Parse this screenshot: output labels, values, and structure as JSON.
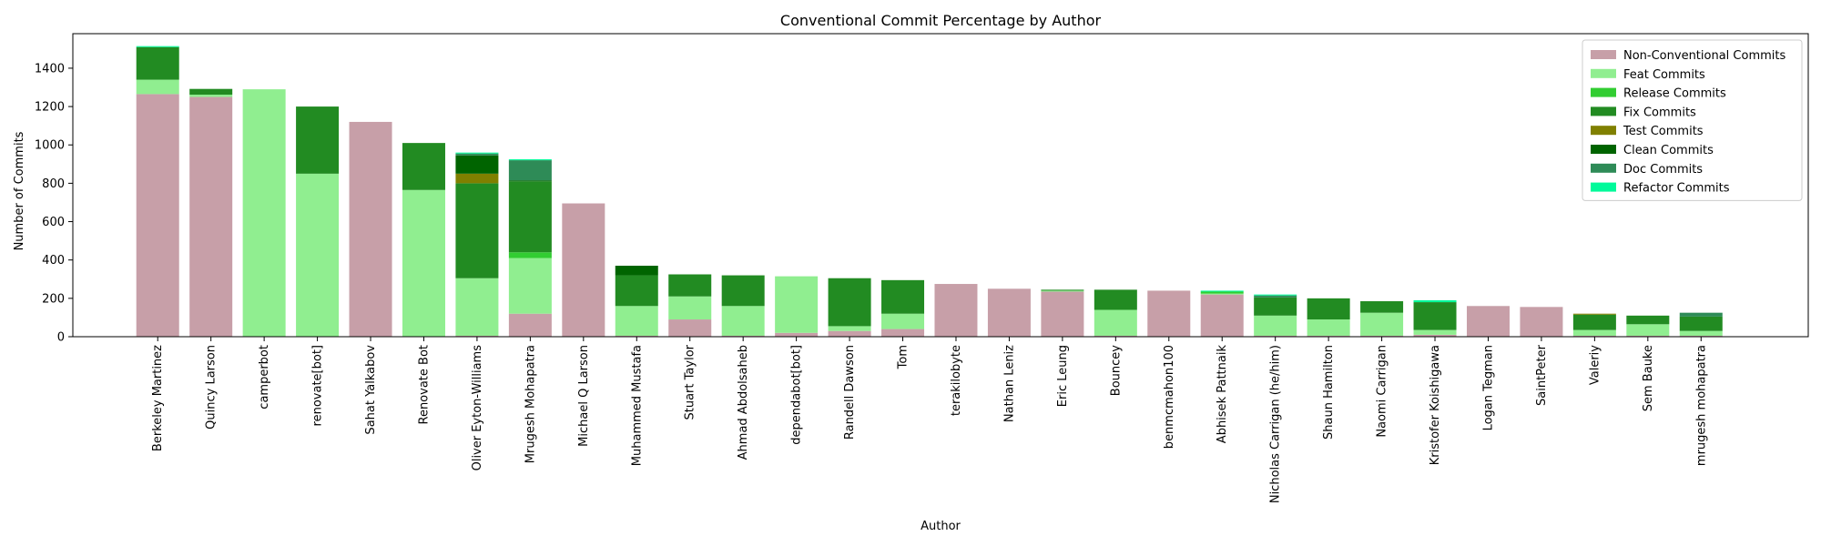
{
  "chart_data": {
    "type": "bar",
    "stacked": true,
    "title": "Conventional Commit Percentage by Author",
    "xlabel": "Author",
    "ylabel": "Number of Commits",
    "ylim": [
      0,
      1580
    ],
    "yticks": [
      0,
      200,
      400,
      600,
      800,
      1000,
      1200,
      1400
    ],
    "grid": false,
    "legend_position": "top-right",
    "categories": [
      "Berkeley Martinez",
      "Quincy Larson",
      "camperbot",
      "renovate[bot]",
      "Sahat Yalkabov",
      "Renovate Bot",
      "Oliver Eyton-Williams",
      "Mrugesh Mohapatra",
      "Michael Q Larson",
      "Muhammed Mustafa",
      "Stuart Taylor",
      "Ahmad Abdolsaheb",
      "dependabot[bot]",
      "Randell Dawson",
      "Tom",
      "terakilobyte",
      "Nathan Leniz",
      "Eric Leung",
      "Bouncey",
      "benmcmahon100",
      "Abhisek Pattnaik",
      "Nicholas Carrigan (he/him)",
      "Shaun Hamilton",
      "Naomi Carrigan",
      "Kristofer Koishigawa",
      "Logan Tegman",
      "SaintPeter",
      "Valeriy",
      "Sem Bauke",
      "mrugesh mohapatra"
    ],
    "series": [
      {
        "name": "Non-Conventional Commits",
        "color": "#c79fa8",
        "values": [
          1265,
          1250,
          0,
          0,
          1120,
          0,
          5,
          120,
          695,
          5,
          90,
          5,
          20,
          30,
          40,
          275,
          250,
          235,
          5,
          240,
          220,
          5,
          5,
          5,
          10,
          160,
          155,
          5,
          5,
          5
        ]
      },
      {
        "name": "Feat Commits",
        "color": "#90ee90",
        "values": [
          75,
          12,
          1290,
          850,
          0,
          765,
          300,
          290,
          0,
          155,
          120,
          155,
          295,
          25,
          80,
          0,
          0,
          5,
          135,
          0,
          5,
          105,
          85,
          120,
          25,
          0,
          0,
          30,
          60,
          25
        ]
      },
      {
        "name": "Release Commits",
        "color": "#32cd32",
        "values": [
          0,
          0,
          0,
          0,
          0,
          0,
          0,
          30,
          0,
          0,
          0,
          0,
          0,
          0,
          0,
          0,
          0,
          0,
          0,
          0,
          10,
          0,
          0,
          0,
          0,
          0,
          0,
          0,
          0,
          0
        ]
      },
      {
        "name": "Fix Commits",
        "color": "#228b22",
        "values": [
          170,
          30,
          0,
          350,
          0,
          245,
          495,
          370,
          0,
          160,
          115,
          160,
          0,
          250,
          175,
          0,
          0,
          5,
          105,
          0,
          0,
          95,
          110,
          60,
          145,
          0,
          0,
          80,
          45,
          75
        ]
      },
      {
        "name": "Test Commits",
        "color": "#808000",
        "values": [
          0,
          0,
          0,
          0,
          0,
          0,
          50,
          0,
          0,
          0,
          0,
          0,
          0,
          0,
          0,
          0,
          0,
          0,
          0,
          0,
          0,
          0,
          0,
          0,
          0,
          0,
          0,
          5,
          0,
          0
        ]
      },
      {
        "name": "Clean Commits",
        "color": "#006400",
        "values": [
          0,
          0,
          0,
          0,
          0,
          0,
          95,
          5,
          0,
          50,
          0,
          0,
          0,
          0,
          0,
          0,
          0,
          0,
          0,
          0,
          0,
          0,
          0,
          0,
          0,
          0,
          0,
          0,
          0,
          0
        ]
      },
      {
        "name": "Doc Commits",
        "color": "#2e8b57",
        "values": [
          0,
          0,
          0,
          0,
          0,
          0,
          10,
          105,
          0,
          0,
          0,
          0,
          0,
          0,
          0,
          0,
          0,
          0,
          0,
          0,
          0,
          10,
          0,
          0,
          0,
          0,
          0,
          0,
          0,
          20
        ]
      },
      {
        "name": "Refactor Commits",
        "color": "#00fa9a",
        "values": [
          5,
          0,
          0,
          0,
          0,
          0,
          5,
          5,
          0,
          0,
          0,
          0,
          0,
          0,
          0,
          0,
          0,
          0,
          0,
          0,
          5,
          5,
          0,
          0,
          10,
          0,
          0,
          0,
          0,
          0
        ]
      }
    ]
  }
}
